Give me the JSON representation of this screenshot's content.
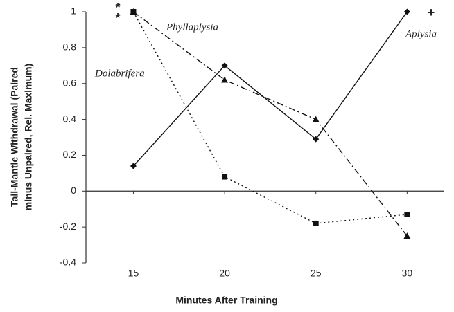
{
  "chart_data": {
    "type": "line",
    "xlabel": "Minutes After Training",
    "ylabel": [
      "Tail-Mantle Withdrawal (Paired",
      "minus Unpaired, Rel. Maximum)"
    ],
    "x": [
      15,
      20,
      25,
      30
    ],
    "series": [
      {
        "name": "Aplysia",
        "color": "#111111",
        "linestyle": "solid",
        "marker": "diamond",
        "values": [
          0.14,
          0.7,
          0.29,
          1.0
        ]
      },
      {
        "name": "Phyllaplysia",
        "color": "#111111",
        "linestyle": "dashdot",
        "marker": "triangle",
        "values": [
          1.0,
          0.62,
          0.4,
          -0.25
        ]
      },
      {
        "name": "Dolabrifera",
        "color": "#111111",
        "linestyle": "dotted",
        "marker": "square",
        "values": [
          1.0,
          0.08,
          -0.18,
          -0.13
        ]
      }
    ],
    "xlim": [
      12.4,
      32
    ],
    "xticks": [
      15,
      20,
      25,
      30
    ],
    "ylim": [
      -0.4,
      1
    ],
    "yticks": [
      -0.4,
      -0.2,
      0,
      0.2,
      0.4,
      0.6,
      0.8,
      1
    ],
    "annotations": [
      "*",
      "*",
      "+"
    ]
  }
}
